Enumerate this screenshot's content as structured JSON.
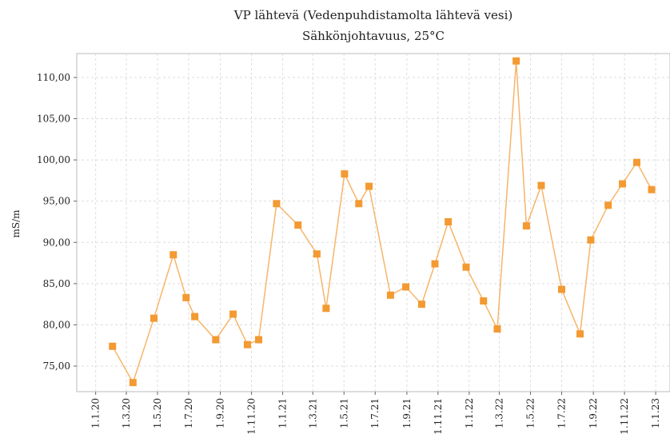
{
  "chart_data": {
    "type": "line",
    "title": "VP lähtevä (Vedenpuhdistamolta lähtevä vesi)",
    "subtitle": "Sähkönjohtavuus, 25°C",
    "y_label": "mS/m",
    "x": [
      "2020-02-03",
      "2020-03-14",
      "2020-04-24",
      "2020-06-01",
      "2020-06-26",
      "2020-07-13",
      "2020-08-23",
      "2020-09-26",
      "2020-10-24",
      "2020-11-15",
      "2020-12-20",
      "2021-01-31",
      "2021-03-09",
      "2021-03-27",
      "2021-05-02",
      "2021-05-30",
      "2021-06-19",
      "2021-07-31",
      "2021-08-30",
      "2021-09-30",
      "2021-10-26",
      "2021-11-21",
      "2021-12-26",
      "2022-01-29",
      "2022-02-25",
      "2022-04-03",
      "2022-04-23",
      "2022-05-22",
      "2022-07-01",
      "2022-08-06",
      "2022-08-27",
      "2022-09-30",
      "2022-10-28",
      "2022-11-25",
      "2022-12-24"
    ],
    "series": [
      {
        "name": "Sähkönjohtavuus",
        "color": "#f39a32",
        "line_color": "#f7b56a",
        "values": [
          77.4,
          73.0,
          80.8,
          88.5,
          83.3,
          81.0,
          78.2,
          81.3,
          77.6,
          78.2,
          94.7,
          92.1,
          88.6,
          82.0,
          98.3,
          94.7,
          96.8,
          83.6,
          84.6,
          82.5,
          87.4,
          92.5,
          87.0,
          82.9,
          79.5,
          112.0,
          92.0,
          96.9,
          84.3,
          78.9,
          90.3,
          94.5,
          97.1,
          99.7,
          96.4
        ]
      }
    ],
    "xlim": [
      "2019-11-25",
      "2023-01-29"
    ],
    "xticks": [
      {
        "value": "2020-01-01",
        "label": "1.1.20"
      },
      {
        "value": "2020-03-01",
        "label": "1.3.20"
      },
      {
        "value": "2020-05-01",
        "label": "1.5.20"
      },
      {
        "value": "2020-07-01",
        "label": "1.7.20"
      },
      {
        "value": "2020-09-01",
        "label": "1.9.20"
      },
      {
        "value": "2020-11-01",
        "label": "1.11.20"
      },
      {
        "value": "2021-01-01",
        "label": "1.1.21"
      },
      {
        "value": "2021-03-01",
        "label": "1.3.21"
      },
      {
        "value": "2021-05-01",
        "label": "1.5.21"
      },
      {
        "value": "2021-07-01",
        "label": "1.7.21"
      },
      {
        "value": "2021-09-01",
        "label": "1.9.21"
      },
      {
        "value": "2021-11-01",
        "label": "1.11.21"
      },
      {
        "value": "2022-01-01",
        "label": "1.1.22"
      },
      {
        "value": "2022-03-01",
        "label": "1.3.22"
      },
      {
        "value": "2022-05-01",
        "label": "1.5.22"
      },
      {
        "value": "2022-07-01",
        "label": "1.7.22"
      },
      {
        "value": "2022-09-01",
        "label": "1.9.22"
      },
      {
        "value": "2022-11-01",
        "label": "1.11.22"
      },
      {
        "value": "2023-01-01",
        "label": "1.1.23"
      }
    ],
    "ylim": [
      71.9,
      112.9
    ],
    "yticks": [
      {
        "value": 75,
        "label": "75,00"
      },
      {
        "value": 80,
        "label": "80,00"
      },
      {
        "value": 85,
        "label": "85,00"
      },
      {
        "value": 90,
        "label": "90,00"
      },
      {
        "value": 95,
        "label": "95,00"
      },
      {
        "value": 100,
        "label": "100,00"
      },
      {
        "value": 105,
        "label": "105,00"
      },
      {
        "value": 110,
        "label": "110,00"
      }
    ],
    "grid": true
  }
}
